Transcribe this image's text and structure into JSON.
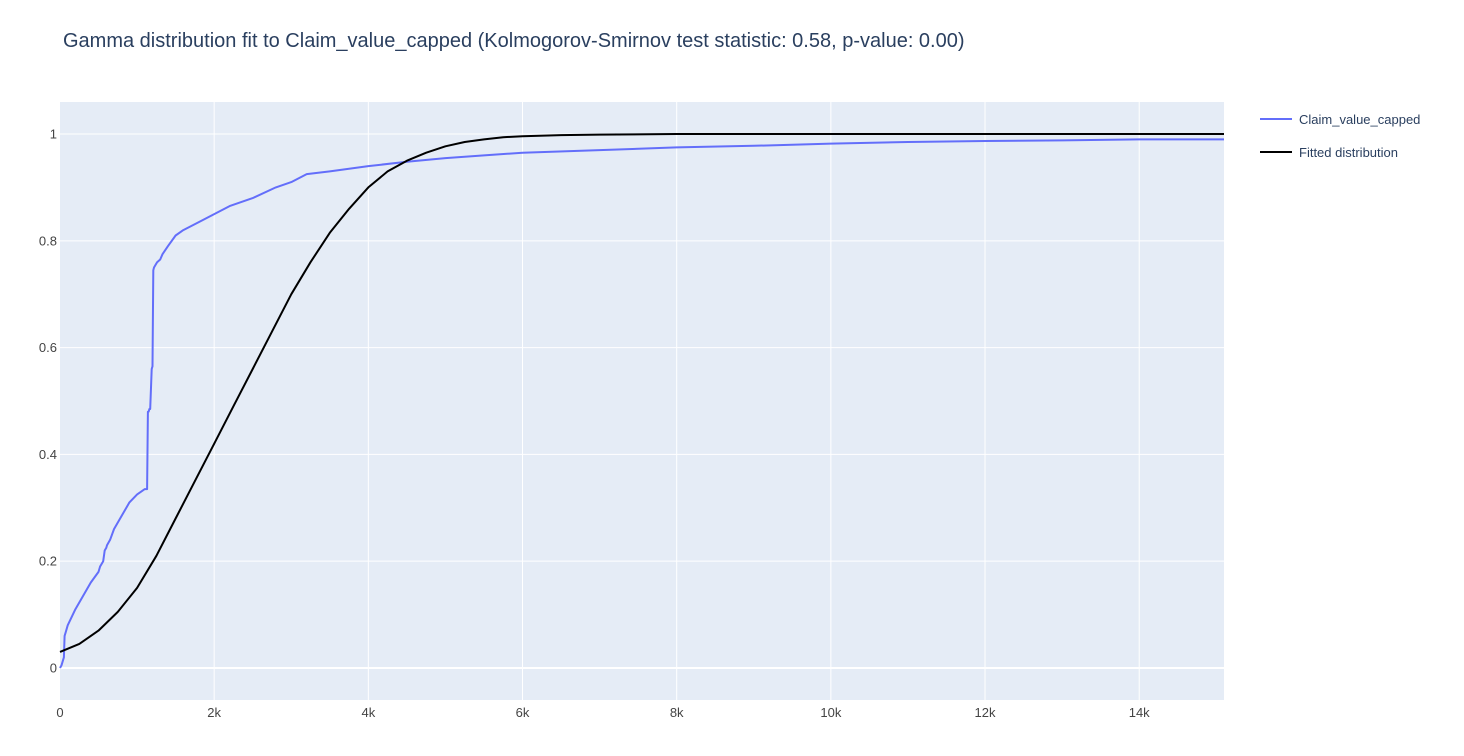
{
  "chart_data": {
    "type": "line",
    "title": "Gamma distribution fit to Claim_value_capped (Kolmogorov-Smirnov test statistic: 0.58, p-value: 0.00)",
    "xlabel": "",
    "ylabel": "",
    "xlim": [
      0,
      15100
    ],
    "ylim": [
      -0.06,
      1.06
    ],
    "x_ticks": [
      0,
      2000,
      4000,
      6000,
      8000,
      10000,
      12000,
      14000
    ],
    "x_tick_labels": [
      "0",
      "2k",
      "4k",
      "6k",
      "8k",
      "10k",
      "12k",
      "14k"
    ],
    "y_ticks": [
      0,
      0.2,
      0.4,
      0.6,
      0.8,
      1
    ],
    "y_tick_labels": [
      "0",
      "0.2",
      "0.4",
      "0.6",
      "0.8",
      "1"
    ],
    "grid": true,
    "legend": "top-right",
    "series": [
      {
        "name": "Claim_value_capped",
        "color": "#636efa",
        "x": [
          0,
          20,
          50,
          60,
          80,
          100,
          200,
          300,
          400,
          500,
          520,
          560,
          580,
          600,
          610,
          650,
          700,
          800,
          900,
          1000,
          1050,
          1100,
          1130,
          1140,
          1150,
          1160,
          1170,
          1190,
          1200,
          1210,
          1220,
          1240,
          1260,
          1300,
          1330,
          1400,
          1500,
          1600,
          1800,
          2000,
          2200,
          2500,
          2800,
          3000,
          3200,
          3500,
          4000,
          4500,
          5000,
          5500,
          6000,
          7000,
          8000,
          9000,
          10000,
          11000,
          12000,
          13000,
          14000,
          15100
        ],
        "y": [
          0,
          0.005,
          0.02,
          0.06,
          0.07,
          0.08,
          0.11,
          0.135,
          0.16,
          0.18,
          0.19,
          0.2,
          0.22,
          0.225,
          0.23,
          0.24,
          0.26,
          0.285,
          0.31,
          0.325,
          0.33,
          0.335,
          0.335,
          0.48,
          0.48,
          0.485,
          0.485,
          0.56,
          0.565,
          0.745,
          0.75,
          0.755,
          0.76,
          0.765,
          0.775,
          0.79,
          0.81,
          0.82,
          0.835,
          0.85,
          0.865,
          0.88,
          0.9,
          0.91,
          0.925,
          0.93,
          0.94,
          0.948,
          0.955,
          0.96,
          0.965,
          0.97,
          0.975,
          0.978,
          0.982,
          0.985,
          0.987,
          0.988,
          0.99,
          0.99
        ]
      },
      {
        "name": "Fitted distribution",
        "color": "#000000",
        "x": [
          0,
          250,
          500,
          750,
          1000,
          1250,
          1500,
          1750,
          2000,
          2250,
          2500,
          2750,
          3000,
          3250,
          3500,
          3750,
          4000,
          4250,
          4500,
          4750,
          5000,
          5250,
          5500,
          5750,
          6000,
          6500,
          7000,
          8000,
          9000,
          10000,
          11000,
          12000,
          13000,
          14000,
          15100
        ],
        "y": [
          0.03,
          0.045,
          0.07,
          0.105,
          0.15,
          0.21,
          0.28,
          0.35,
          0.42,
          0.49,
          0.56,
          0.63,
          0.7,
          0.76,
          0.815,
          0.86,
          0.9,
          0.93,
          0.95,
          0.965,
          0.977,
          0.985,
          0.99,
          0.994,
          0.996,
          0.998,
          0.999,
          1,
          1,
          1,
          1,
          1,
          1,
          1,
          1
        ]
      }
    ]
  }
}
